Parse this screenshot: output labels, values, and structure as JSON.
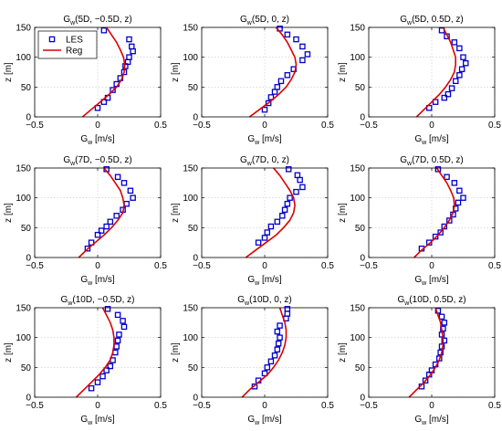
{
  "chart_data": [
    {
      "type": "line",
      "title": {
        "main": "G",
        "sub": "w",
        "rest": "(5D, −0.5D, z)"
      },
      "xlabel": {
        "main": "G",
        "sub": "w",
        "rest": " [m/s]"
      },
      "ylabel": "z [m]",
      "xlim": [
        -0.5,
        0.5
      ],
      "ylim": [
        0,
        150
      ],
      "xticks": [
        "−0.5",
        "0",
        "0.5"
      ],
      "yticks": [
        "0",
        "50",
        "100",
        "150"
      ],
      "grid": true,
      "legend": {
        "placement": "top-left",
        "entries": [
          "LES",
          "Reg"
        ]
      },
      "series": [
        {
          "name": "LES",
          "marker": "square",
          "color": "#0000cc",
          "x": [
            0.05,
            0.25,
            0.27,
            0.28,
            0.25,
            0.24,
            0.22,
            0.21,
            0.18,
            0.15,
            0.12,
            0.08,
            0.05,
            0.0
          ],
          "y": [
            145,
            130,
            118,
            110,
            100,
            92,
            85,
            75,
            65,
            55,
            45,
            32,
            25,
            15
          ]
        },
        {
          "name": "Reg",
          "marker": "line",
          "color": "#dd0000",
          "x": [
            -0.12,
            -0.05,
            0.02,
            0.09,
            0.15,
            0.19,
            0.21,
            0.215,
            0.205,
            0.18,
            0.15,
            0.11,
            0.07
          ],
          "y": [
            0,
            12.5,
            25,
            37.5,
            50,
            62.5,
            75,
            87.5,
            100,
            112.5,
            125,
            137.5,
            150
          ]
        }
      ]
    },
    {
      "type": "line",
      "title": {
        "main": "G",
        "sub": "w",
        "rest": "(5D, 0, z)"
      },
      "xlabel": {
        "main": "G",
        "sub": "w",
        "rest": " [m/s]"
      },
      "ylabel": "z [m]",
      "xlim": [
        -0.5,
        0.5
      ],
      "ylim": [
        0,
        150
      ],
      "xticks": [
        "−0.5",
        "0",
        "0.5"
      ],
      "yticks": [
        "0",
        "50",
        "100",
        "150"
      ],
      "grid": true,
      "series": [
        {
          "name": "LES",
          "marker": "square",
          "color": "#0000cc",
          "x": [
            0.12,
            0.18,
            0.25,
            0.3,
            0.34,
            0.3,
            0.23,
            0.18,
            0.13,
            0.1,
            0.08,
            0.05,
            0.03,
            0.0
          ],
          "y": [
            148,
            138,
            130,
            118,
            105,
            95,
            80,
            70,
            60,
            50,
            42,
            33,
            23,
            12
          ]
        },
        {
          "name": "Reg",
          "marker": "line",
          "color": "#dd0000",
          "x": [
            -0.12,
            -0.04,
            0.04,
            0.11,
            0.17,
            0.21,
            0.24,
            0.25,
            0.24,
            0.21,
            0.18,
            0.14,
            0.09
          ],
          "y": [
            0,
            12.5,
            25,
            37.5,
            50,
            62.5,
            75,
            87.5,
            100,
            112.5,
            125,
            137.5,
            150
          ]
        }
      ]
    },
    {
      "type": "line",
      "title": {
        "main": "G",
        "sub": "w",
        "rest": "(5D, 0.5D, z)"
      },
      "xlabel": {
        "main": "G",
        "sub": "w",
        "rest": " [m/s]"
      },
      "ylabel": "z [m]",
      "xlim": [
        -0.5,
        0.5
      ],
      "ylim": [
        0,
        150
      ],
      "xticks": [
        "−0.5",
        "0",
        "0.5"
      ],
      "yticks": [
        "0",
        "50",
        "100",
        "150"
      ],
      "grid": true,
      "series": [
        {
          "name": "LES",
          "marker": "square",
          "color": "#0000cc",
          "x": [
            0.08,
            0.12,
            0.18,
            0.22,
            0.25,
            0.27,
            0.24,
            0.22,
            0.19,
            0.16,
            0.13,
            0.1,
            0.03,
            -0.02
          ],
          "y": [
            145,
            135,
            125,
            115,
            100,
            90,
            80,
            70,
            60,
            48,
            38,
            32,
            25,
            15
          ]
        },
        {
          "name": "Reg",
          "marker": "line",
          "color": "#dd0000",
          "x": [
            -0.12,
            -0.06,
            0.0,
            0.06,
            0.11,
            0.15,
            0.18,
            0.19,
            0.19,
            0.17,
            0.15,
            0.12,
            0.09
          ],
          "y": [
            0,
            12.5,
            25,
            37.5,
            50,
            62.5,
            75,
            87.5,
            100,
            112.5,
            125,
            137.5,
            150
          ]
        }
      ]
    },
    {
      "type": "line",
      "title": {
        "main": "G",
        "sub": "w",
        "rest": "(7D, −0.5D, z)"
      },
      "xlabel": {
        "main": "G",
        "sub": "w",
        "rest": " [m/s]"
      },
      "ylabel": "z [m]",
      "xlim": [
        -0.5,
        0.5
      ],
      "ylim": [
        0,
        150
      ],
      "xticks": [
        "−0.5",
        "0",
        "0.5"
      ],
      "yticks": [
        "0",
        "50",
        "100",
        "150"
      ],
      "grid": true,
      "series": [
        {
          "name": "LES",
          "marker": "square",
          "color": "#0000cc",
          "x": [
            0.07,
            0.16,
            0.21,
            0.26,
            0.28,
            0.23,
            0.2,
            0.15,
            0.1,
            0.07,
            0.03,
            0.0,
            -0.05,
            -0.08
          ],
          "y": [
            148,
            135,
            125,
            112,
            100,
            90,
            80,
            70,
            60,
            52,
            45,
            38,
            25,
            15
          ]
        },
        {
          "name": "Reg",
          "marker": "line",
          "color": "#dd0000",
          "x": [
            -0.15,
            -0.09,
            -0.02,
            0.05,
            0.11,
            0.16,
            0.2,
            0.21,
            0.2,
            0.18,
            0.14,
            0.1,
            0.05
          ],
          "y": [
            0,
            12.5,
            25,
            37.5,
            50,
            62.5,
            75,
            87.5,
            100,
            112.5,
            125,
            137.5,
            150
          ]
        }
      ]
    },
    {
      "type": "line",
      "title": {
        "main": "G",
        "sub": "w",
        "rest": "(7D, 0, z)"
      },
      "xlabel": {
        "main": "G",
        "sub": "w",
        "rest": " [m/s]"
      },
      "ylabel": "z [m]",
      "xlim": [
        -0.5,
        0.5
      ],
      "ylim": [
        0,
        150
      ],
      "xticks": [
        "−0.5",
        "0",
        "0.5"
      ],
      "yticks": [
        "0",
        "50",
        "100",
        "150"
      ],
      "grid": true,
      "series": [
        {
          "name": "LES",
          "marker": "square",
          "color": "#0000cc",
          "x": [
            0.19,
            0.26,
            0.28,
            0.3,
            0.25,
            0.2,
            0.18,
            0.16,
            0.14,
            0.1,
            0.05,
            0.02,
            0.0,
            -0.05
          ],
          "y": [
            148,
            138,
            130,
            118,
            110,
            100,
            90,
            80,
            70,
            60,
            52,
            42,
            33,
            25
          ]
        },
        {
          "name": "Reg",
          "marker": "line",
          "color": "#dd0000",
          "x": [
            -0.15,
            -0.07,
            0.01,
            0.09,
            0.15,
            0.2,
            0.23,
            0.24,
            0.23,
            0.2,
            0.16,
            0.12,
            0.07
          ],
          "y": [
            0,
            12.5,
            25,
            37.5,
            50,
            62.5,
            75,
            87.5,
            100,
            112.5,
            125,
            137.5,
            150
          ]
        }
      ]
    },
    {
      "type": "line",
      "title": {
        "main": "G",
        "sub": "w",
        "rest": "(7D, 0.5D, z)"
      },
      "xlabel": {
        "main": "G",
        "sub": "w",
        "rest": " [m/s]"
      },
      "ylabel": "z [m]",
      "xlim": [
        -0.5,
        0.5
      ],
      "ylim": [
        0,
        150
      ],
      "xticks": [
        "−0.5",
        "0",
        "0.5"
      ],
      "yticks": [
        "0",
        "50",
        "100",
        "150"
      ],
      "grid": true,
      "series": [
        {
          "name": "LES",
          "marker": "square",
          "color": "#0000cc",
          "x": [
            0.05,
            0.12,
            0.18,
            0.22,
            0.25,
            0.21,
            0.19,
            0.17,
            0.14,
            0.1,
            0.07,
            0.03,
            -0.02,
            -0.08
          ],
          "y": [
            148,
            135,
            125,
            112,
            100,
            92,
            82,
            72,
            62,
            52,
            42,
            35,
            25,
            15
          ]
        },
        {
          "name": "Reg",
          "marker": "line",
          "color": "#dd0000",
          "x": [
            -0.14,
            -0.08,
            -0.01,
            0.05,
            0.1,
            0.14,
            0.17,
            0.18,
            0.175,
            0.15,
            0.12,
            0.08,
            0.04
          ],
          "y": [
            0,
            12.5,
            25,
            37.5,
            50,
            62.5,
            75,
            87.5,
            100,
            112.5,
            125,
            137.5,
            150
          ]
        }
      ]
    },
    {
      "type": "line",
      "title": {
        "main": "G",
        "sub": "w",
        "rest": "(10D, −0.5D, z)"
      },
      "xlabel": {
        "main": "G",
        "sub": "w",
        "rest": " [m/s]"
      },
      "ylabel": "z [m]",
      "xlim": [
        -0.5,
        0.5
      ],
      "ylim": [
        0,
        150
      ],
      "xticks": [
        "−0.5",
        "0",
        "0.5"
      ],
      "yticks": [
        "0",
        "50",
        "100",
        "150"
      ],
      "grid": true,
      "series": [
        {
          "name": "LES",
          "marker": "square",
          "color": "#0000cc",
          "x": [
            0.08,
            0.16,
            0.2,
            0.21,
            0.17,
            0.16,
            0.15,
            0.14,
            0.12,
            0.1,
            0.07,
            0.04,
            0.0,
            -0.05
          ],
          "y": [
            148,
            138,
            128,
            118,
            105,
            95,
            85,
            75,
            62,
            52,
            45,
            35,
            25,
            15
          ]
        },
        {
          "name": "Reg",
          "marker": "line",
          "color": "#dd0000",
          "x": [
            -0.17,
            -0.11,
            -0.05,
            0.01,
            0.06,
            0.1,
            0.12,
            0.13,
            0.13,
            0.12,
            0.1,
            0.07,
            0.04
          ],
          "y": [
            0,
            12.5,
            25,
            37.5,
            50,
            62.5,
            75,
            87.5,
            100,
            112.5,
            125,
            137.5,
            150
          ]
        }
      ]
    },
    {
      "type": "line",
      "title": {
        "main": "G",
        "sub": "w",
        "rest": "(10D, 0, z)"
      },
      "xlabel": {
        "main": "G",
        "sub": "w",
        "rest": " [m/s]"
      },
      "ylabel": "z [m]",
      "xlim": [
        -0.5,
        0.5
      ],
      "ylim": [
        0,
        150
      ],
      "xticks": [
        "−0.5",
        "0",
        "0.5"
      ],
      "yticks": [
        "0",
        "50",
        "100",
        "150"
      ],
      "grid": true,
      "series": [
        {
          "name": "LES",
          "marker": "square",
          "color": "#0000cc",
          "x": [
            0.18,
            0.18,
            0.17,
            0.12,
            0.1,
            0.12,
            0.11,
            0.1,
            0.08,
            0.05,
            0.02,
            0.0,
            -0.05,
            -0.08
          ],
          "y": [
            148,
            140,
            132,
            120,
            110,
            100,
            90,
            80,
            70,
            60,
            50,
            40,
            28,
            18
          ]
        },
        {
          "name": "Reg",
          "marker": "line",
          "color": "#dd0000",
          "x": [
            -0.18,
            -0.12,
            -0.05,
            0.02,
            0.07,
            0.11,
            0.14,
            0.16,
            0.17,
            0.17,
            0.16,
            0.14,
            0.12
          ],
          "y": [
            0,
            12.5,
            25,
            37.5,
            50,
            62.5,
            75,
            87.5,
            100,
            112.5,
            125,
            137.5,
            150
          ]
        }
      ]
    },
    {
      "type": "line",
      "title": {
        "main": "G",
        "sub": "w",
        "rest": "(10D, 0.5D, z)"
      },
      "xlabel": {
        "main": "G",
        "sub": "w",
        "rest": " [m/s]"
      },
      "ylabel": "z [m]",
      "xlim": [
        -0.5,
        0.5
      ],
      "ylim": [
        0,
        150
      ],
      "xticks": [
        "−0.5",
        "0",
        "0.5"
      ],
      "yticks": [
        "0",
        "50",
        "100",
        "150"
      ],
      "grid": true,
      "series": [
        {
          "name": "LES",
          "marker": "square",
          "color": "#0000cc",
          "x": [
            0.05,
            0.08,
            0.1,
            0.09,
            0.08,
            0.1,
            0.08,
            0.07,
            0.06,
            0.03,
            0.0,
            -0.02,
            -0.05,
            -0.08
          ],
          "y": [
            145,
            135,
            125,
            115,
            105,
            95,
            85,
            75,
            65,
            55,
            45,
            38,
            28,
            18
          ]
        },
        {
          "name": "Reg",
          "marker": "line",
          "color": "#dd0000",
          "x": [
            -0.18,
            -0.12,
            -0.06,
            -0.01,
            0.03,
            0.06,
            0.08,
            0.09,
            0.09,
            0.08,
            0.07,
            0.05,
            0.03
          ],
          "y": [
            0,
            12.5,
            25,
            37.5,
            50,
            62.5,
            75,
            87.5,
            100,
            112.5,
            125,
            137.5,
            150
          ]
        }
      ]
    }
  ]
}
